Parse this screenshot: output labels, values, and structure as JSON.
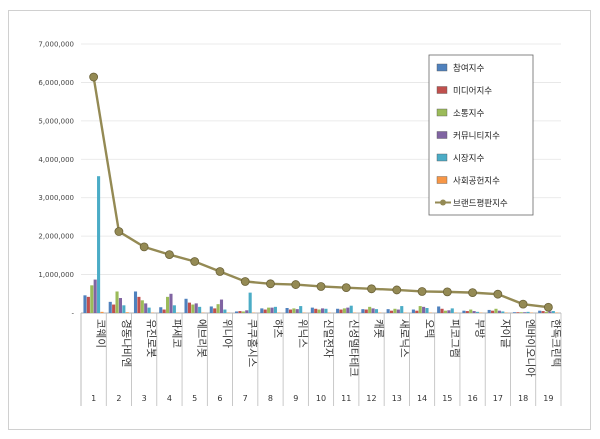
{
  "chart_data": {
    "type": "bar",
    "categories": [
      "코웨이",
      "경동나비엔",
      "유진로봇",
      "파세코",
      "에브리봇",
      "위니아",
      "쿠쿠홈시스",
      "하츠",
      "위닉스",
      "신일전자",
      "신성델타테크",
      "캐롯",
      "새로닉스",
      "오텍",
      "피코그램",
      "부방",
      "자이글",
      "엔바이오니아",
      "한독크린텍"
    ],
    "numbers": [
      "1",
      "2",
      "3",
      "4",
      "5",
      "6",
      "7",
      "8",
      "9",
      "10",
      "11",
      "12",
      "13",
      "14",
      "15",
      "16",
      "17",
      "18",
      "19"
    ],
    "ylim": [
      0,
      7000000
    ],
    "yticks": [
      "-",
      "1,000,000",
      "2,000,000",
      "3,000,000",
      "4,000,000",
      "5,000,000",
      "6,000,000",
      "7,000,000"
    ],
    "series": [
      {
        "name": "참여지수",
        "color": "#4f81bd",
        "values": [
          460000,
          290000,
          560000,
          150000,
          370000,
          170000,
          40000,
          120000,
          130000,
          140000,
          110000,
          100000,
          100000,
          90000,
          170000,
          60000,
          80000,
          20000,
          60000
        ]
      },
      {
        "name": "미디어지수",
        "color": "#c0504d",
        "values": [
          420000,
          220000,
          420000,
          90000,
          270000,
          120000,
          50000,
          90000,
          90000,
          110000,
          90000,
          90000,
          60000,
          60000,
          110000,
          50000,
          60000,
          20000,
          50000
        ]
      },
      {
        "name": "소통지수",
        "color": "#9bbb59",
        "values": [
          720000,
          560000,
          330000,
          420000,
          220000,
          230000,
          40000,
          140000,
          120000,
          90000,
          120000,
          160000,
          110000,
          180000,
          60000,
          90000,
          110000,
          20000,
          30000
        ]
      },
      {
        "name": "커뮤니티지수",
        "color": "#8064a2",
        "values": [
          870000,
          390000,
          250000,
          500000,
          250000,
          350000,
          70000,
          140000,
          100000,
          120000,
          140000,
          120000,
          90000,
          160000,
          70000,
          50000,
          60000,
          20000,
          40000
        ]
      },
      {
        "name": "시장지수",
        "color": "#4bacc6",
        "values": [
          3560000,
          200000,
          140000,
          200000,
          160000,
          90000,
          530000,
          160000,
          180000,
          110000,
          190000,
          100000,
          180000,
          130000,
          120000,
          30000,
          40000,
          30000,
          50000
        ]
      },
      {
        "name": "사회공헌지수",
        "color": "#f79646",
        "values": [
          30000,
          20000,
          10000,
          10000,
          10000,
          10000,
          10000,
          10000,
          10000,
          10000,
          10000,
          10000,
          10000,
          10000,
          10000,
          10000,
          10000,
          10000,
          10000
        ]
      }
    ],
    "line": {
      "name": "브랜드평판지수",
      "color": "#948a54",
      "values": [
        6140000,
        2120000,
        1720000,
        1520000,
        1340000,
        1080000,
        820000,
        760000,
        740000,
        690000,
        660000,
        630000,
        600000,
        560000,
        550000,
        530000,
        490000,
        230000,
        150000
      ]
    },
    "legend_position": "top-right"
  }
}
